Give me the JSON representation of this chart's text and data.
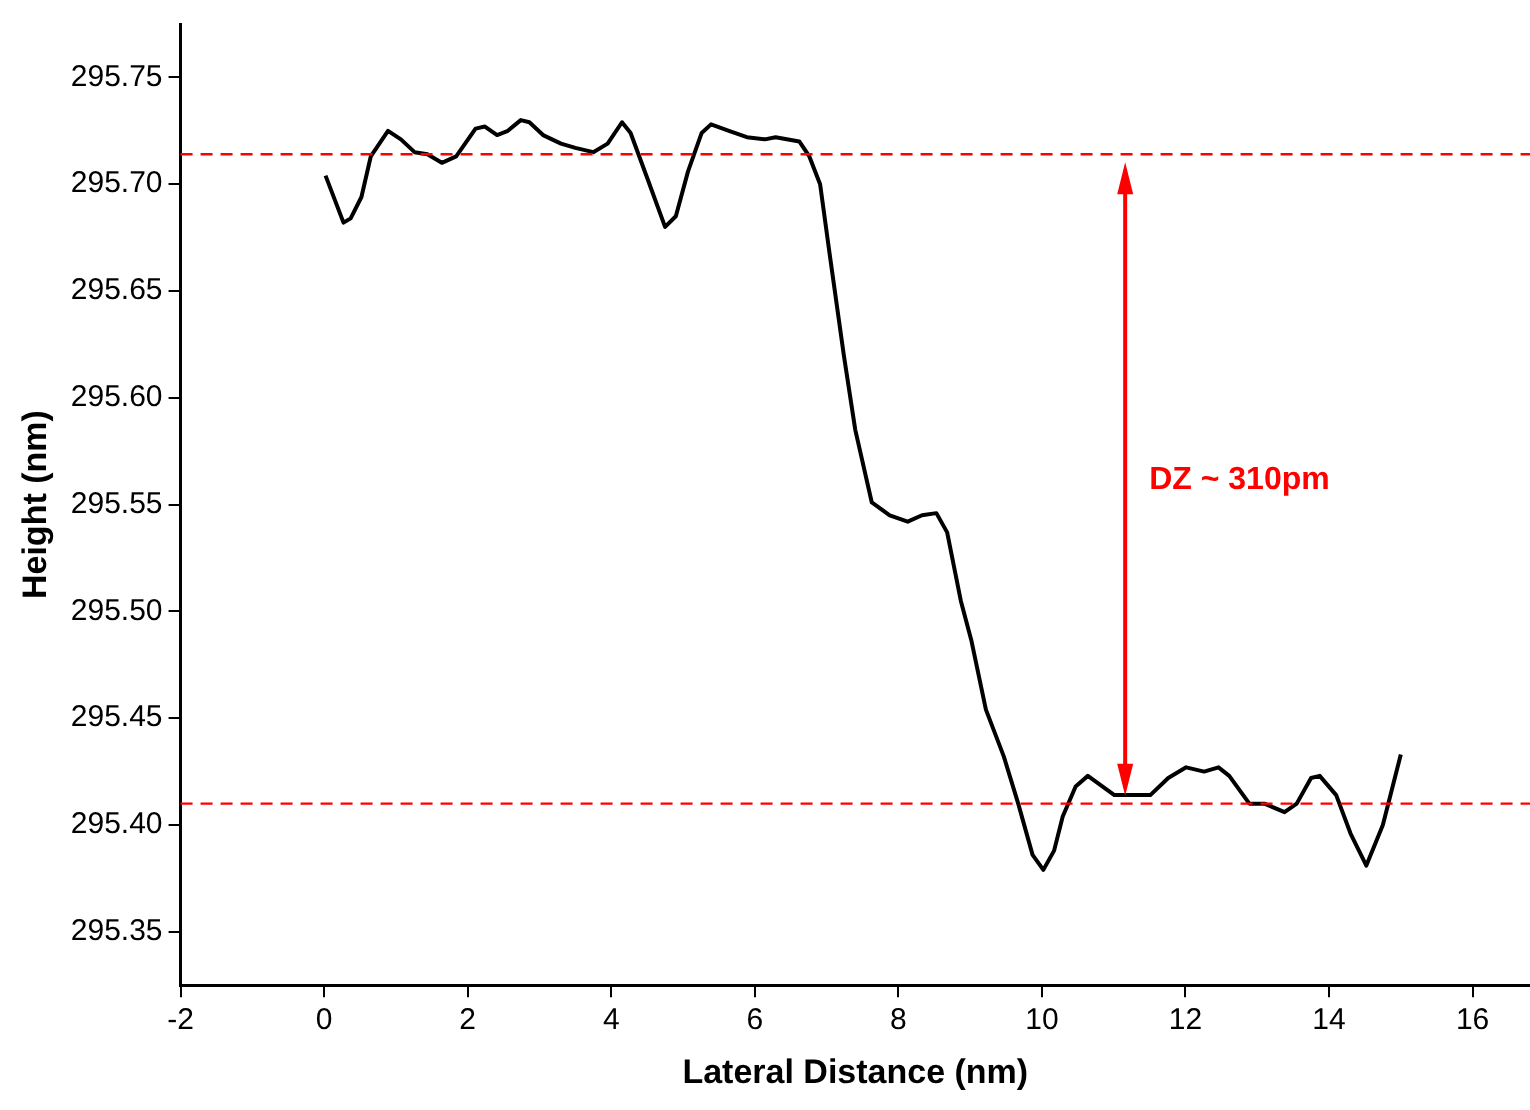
{
  "chart_data": {
    "type": "line",
    "xlabel": "Lateral Distance (nm)",
    "ylabel": "Height (nm)",
    "xlim": [
      -2,
      16.8
    ],
    "ylim": [
      295.325,
      295.775
    ],
    "xticks": [
      -2,
      0,
      2,
      4,
      6,
      8,
      10,
      12,
      14,
      16
    ],
    "yticks": [
      295.35,
      {
        "value": 295.4,
        "label": "295.40"
      },
      295.45,
      {
        "value": 295.5,
        "label": "295.50"
      },
      295.55,
      {
        "value": 295.6,
        "label": "295.60"
      },
      295.65,
      {
        "value": 295.7,
        "label": "295.70"
      },
      295.75
    ],
    "legend": false,
    "marker": "none",
    "line_style": "solid",
    "series": [
      {
        "color": "#000000",
        "x": [
          0.02,
          0.27,
          0.37,
          0.52,
          0.65,
          0.89,
          1.07,
          1.26,
          1.44,
          1.64,
          1.84,
          2.11,
          2.24,
          2.41,
          2.56,
          2.74,
          2.86,
          3.05,
          3.3,
          3.5,
          3.75,
          3.95,
          4.15,
          4.27,
          4.5,
          4.75,
          4.9,
          5.07,
          5.26,
          5.39,
          5.64,
          5.89,
          6.14,
          6.29,
          6.62,
          6.76,
          6.91,
          7.04,
          7.24,
          7.4,
          7.63,
          7.88,
          8.13,
          8.33,
          8.53,
          8.68,
          8.87,
          9.02,
          9.22,
          9.47,
          9.67,
          9.87,
          10.02,
          10.17,
          10.29,
          10.47,
          10.64,
          11.01,
          11.31,
          11.51,
          11.76,
          12.01,
          12.26,
          12.46,
          12.61,
          12.89,
          13.1,
          13.38,
          13.55,
          13.75,
          13.87,
          14.1,
          14.3,
          14.52,
          14.75,
          15.0
        ],
        "values": [
          295.704,
          295.682,
          295.684,
          295.694,
          295.713,
          295.725,
          295.721,
          295.715,
          295.714,
          295.71,
          295.713,
          295.726,
          295.727,
          295.723,
          295.725,
          295.73,
          295.729,
          295.723,
          295.719,
          295.717,
          295.715,
          295.719,
          295.729,
          295.724,
          295.703,
          295.68,
          295.685,
          295.706,
          295.724,
          295.728,
          295.725,
          295.722,
          295.721,
          295.722,
          295.72,
          295.713,
          295.7,
          295.668,
          295.62,
          295.585,
          295.551,
          295.545,
          295.542,
          295.545,
          295.546,
          295.537,
          295.505,
          295.486,
          295.454,
          295.432,
          295.41,
          295.386,
          295.379,
          295.388,
          295.404,
          295.418,
          295.423,
          295.414,
          295.414,
          295.414,
          295.422,
          295.427,
          295.425,
          295.427,
          295.423,
          295.41,
          295.41,
          295.406,
          295.41,
          295.422,
          295.423,
          295.414,
          295.396,
          295.381,
          295.4,
          295.433
        ]
      }
    ],
    "ref_lines": [
      {
        "axis": "y",
        "value": 295.714,
        "color": "#ff0000",
        "line_style": "dashed"
      },
      {
        "axis": "y",
        "value": 295.41,
        "color": "#ff0000",
        "line_style": "dashed"
      }
    ],
    "annotations": [
      "DZ ~ 310pm"
    ]
  }
}
